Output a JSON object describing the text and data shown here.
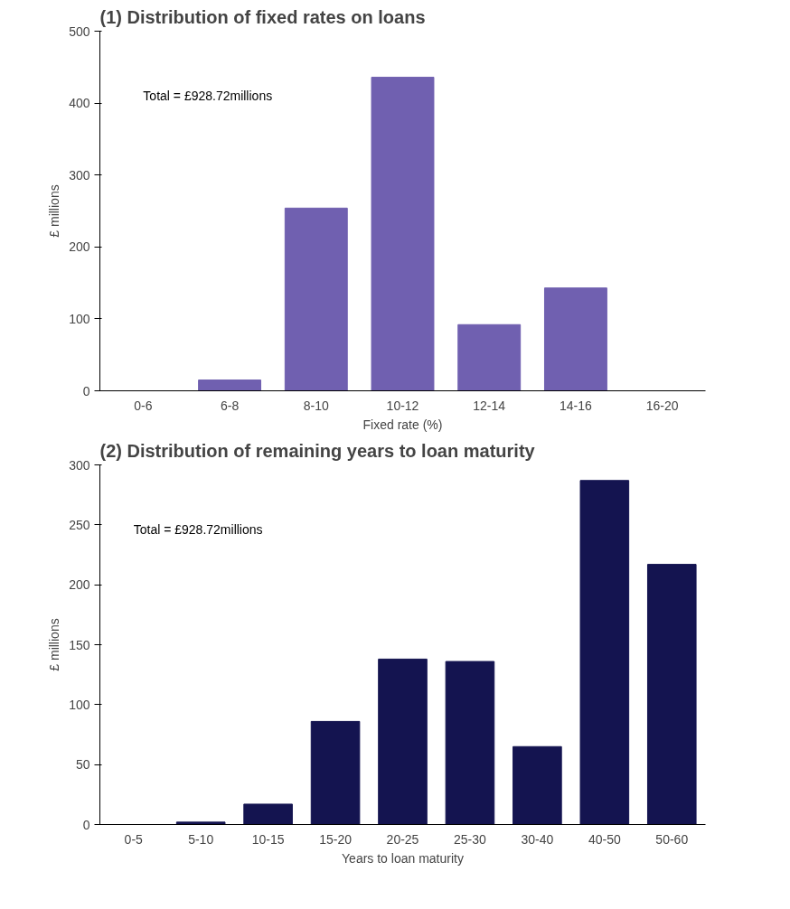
{
  "chart_data": [
    {
      "type": "bar",
      "title": "(1) Distribution of fixed rates on loans",
      "xlabel": "Fixed rate (%)",
      "ylabel": "£ millions",
      "categories": [
        "0-6",
        "6-8",
        "8-10",
        "10-12",
        "12-14",
        "14-16",
        "16-20"
      ],
      "values": [
        0,
        15,
        254,
        436,
        92,
        143,
        0
      ],
      "color": "#7060b0",
      "ylim": [
        0,
        500
      ],
      "yticks": [
        0,
        100,
        200,
        300,
        400,
        500
      ],
      "grid": false,
      "annotations": [
        "Total = £928.72millions"
      ]
    },
    {
      "type": "bar",
      "title": "(2) Distribution of remaining years to loan maturity",
      "xlabel": "Years to loan maturity",
      "ylabel": "£ millions",
      "categories": [
        "0-5",
        "5-10",
        "10-15",
        "15-20",
        "20-25",
        "25-30",
        "30-40",
        "40-50",
        "50-60"
      ],
      "values": [
        0,
        2,
        17,
        86,
        138,
        136,
        65,
        287,
        217
      ],
      "color": "#141450",
      "ylim": [
        0,
        300
      ],
      "yticks": [
        0,
        50,
        100,
        150,
        200,
        250,
        300
      ],
      "grid": false,
      "annotations": [
        "Total = £928.72millions"
      ]
    }
  ]
}
